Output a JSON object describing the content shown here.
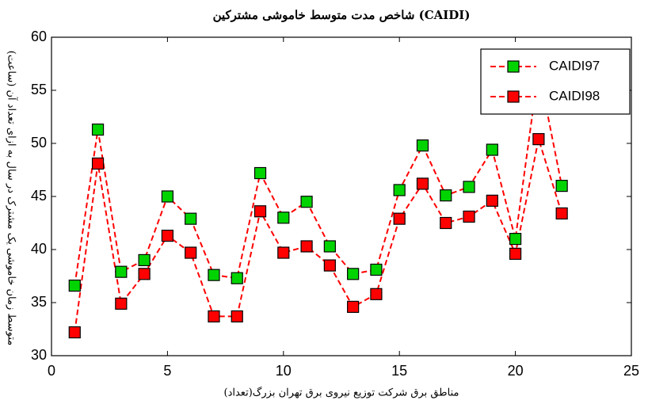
{
  "chart_data": {
    "type": "line",
    "title": "شاخص مدت متوسط خاموشی مشترکین (CAIDI)",
    "x_label": "مناطق برق شرکت توزیع نیروی برق تهران بزرگ(تعداد)",
    "y_label": "متوسط زمان خاموشی یک مشترک در سال به ازای تعداد آن (ساعت)",
    "x": [
      1,
      2,
      3,
      4,
      5,
      6,
      7,
      8,
      9,
      10,
      11,
      12,
      13,
      14,
      15,
      16,
      17,
      18,
      19,
      20,
      21,
      22
    ],
    "series": [
      {
        "name": "CAIDI97",
        "color": "#00d400",
        "values": [
          36.6,
          51.3,
          37.9,
          39,
          45,
          42.9,
          37.6,
          37.3,
          47.2,
          43,
          44.5,
          40.3,
          37.7,
          38.1,
          45.6,
          49.8,
          45.1,
          45.9,
          49.4,
          41,
          57,
          46
        ]
      },
      {
        "name": "CAIDI98",
        "color": "#ff0000",
        "values": [
          32.2,
          48.1,
          34.9,
          37.7,
          41.3,
          39.7,
          33.7,
          33.7,
          43.6,
          39.7,
          40.3,
          38.5,
          34.6,
          35.8,
          42.9,
          46.2,
          42.5,
          43.1,
          44.6,
          39.6,
          50.4,
          43.4
        ]
      }
    ],
    "line_color": "#ff0000",
    "xlim": [
      0,
      25
    ],
    "xticks": [
      0,
      5,
      10,
      15,
      20,
      25
    ],
    "ylim": [
      30,
      60
    ],
    "yticks": [
      30,
      35,
      40,
      45,
      50,
      55,
      60
    ],
    "legend": "upper right"
  }
}
